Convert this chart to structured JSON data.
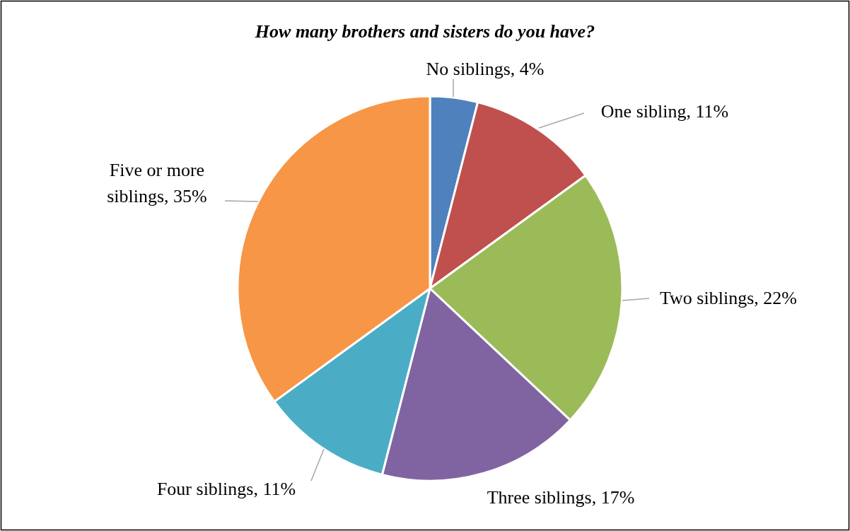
{
  "chart_data": {
    "type": "pie",
    "title": "How many brothers and sisters do you have?",
    "categories": [
      "No siblings",
      "One sibling",
      "Two siblings",
      "Three siblings",
      "Four siblings",
      "Five or more siblings"
    ],
    "values": [
      4,
      11,
      22,
      17,
      11,
      35
    ],
    "value_labels": [
      "4%",
      "11%",
      "22%",
      "17%",
      "11%",
      "35%"
    ],
    "colors": [
      "#4f81bd",
      "#c0504d",
      "#9bbb59",
      "#8064a2",
      "#4bacc6",
      "#f79646"
    ]
  }
}
